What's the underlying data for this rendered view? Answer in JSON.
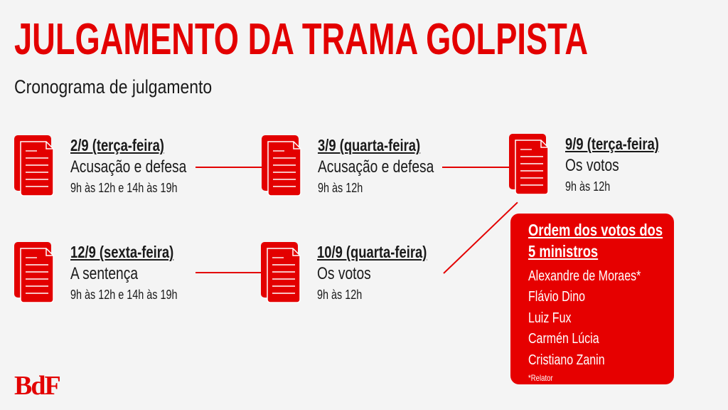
{
  "header": {
    "title": "JULGAMENTO DA TRAMA GOLPISTA",
    "subtitle": "Cronograma de julgamento"
  },
  "schedule": [
    {
      "date": "2/9 (terça-feira)",
      "description": "Acusação e defesa",
      "time": "9h às 12h e 14h às 19h",
      "icon": "document-icon"
    },
    {
      "date": "3/9 (quarta-feira)",
      "description": "Acusação e defesa",
      "time": "9h às 12h",
      "icon": "document-icon"
    },
    {
      "date": "9/9 (terça-feira)",
      "description": "Os votos",
      "time": "9h às 12h",
      "icon": "document-icon"
    },
    {
      "date": "12/9 (sexta-feira)",
      "description": "A sentença",
      "time": "9h às 12h e 14h às 19h",
      "icon": "document-icon"
    },
    {
      "date": "10/9 (quarta-feira)",
      "description": "Os votos",
      "time": "9h às 12h",
      "icon": "document-icon"
    }
  ],
  "votes_box": {
    "heading_line1": "Ordem dos votos dos",
    "heading_line2": "5 ministros",
    "ministers": [
      "Alexandre de Moraes*",
      "Flávio Dino",
      "Luiz Fux",
      "Carmén Lúcia",
      "Cristiano Zanin"
    ],
    "note": "*Relator"
  },
  "logo": "BdF",
  "colors": {
    "accent": "#e30000",
    "background": "#f4f4f4"
  }
}
